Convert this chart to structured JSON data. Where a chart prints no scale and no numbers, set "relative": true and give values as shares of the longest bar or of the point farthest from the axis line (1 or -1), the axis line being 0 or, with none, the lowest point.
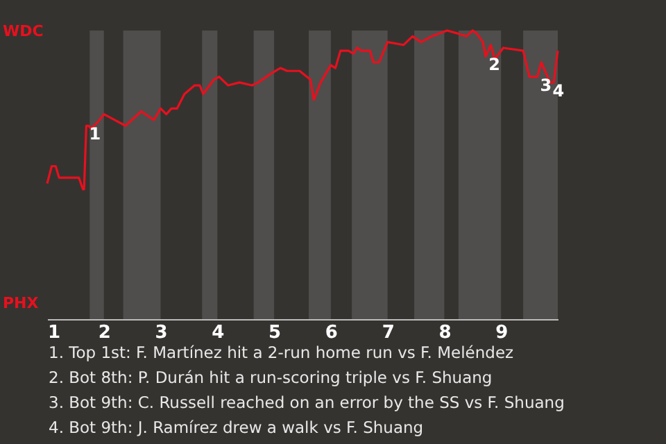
{
  "chart_data": {
    "type": "line",
    "relative": true,
    "x": [
      1,
      1.08,
      1.15,
      1.21,
      1.33,
      1.44,
      1.56,
      1.63,
      1.65,
      1.69,
      1.73,
      1.77,
      1.88,
      2,
      2.19,
      2.38,
      2.66,
      2.88,
      3,
      3.1,
      3.19,
      3.29,
      3.42,
      3.6,
      3.69,
      3.75,
      3.94,
      4.03,
      4.19,
      4.39,
      4.61,
      4.72,
      4.94,
      5.11,
      5.23,
      5.45,
      5.64,
      5.7,
      5.82,
      6,
      6.08,
      6.17,
      6.31,
      6.4,
      6.46,
      6.54,
      6.69,
      6.75,
      6.85,
      7,
      7.28,
      7.44,
      7.59,
      7.78,
      8.05,
      8.23,
      8.39,
      8.5,
      8.57,
      8.68,
      8.73,
      8.82,
      8.89,
      9.04,
      9.39,
      9.5,
      9.64,
      9.71,
      9.82,
      9.86,
      9.93,
      10
    ],
    "series": [
      {
        "color": "#e8101e",
        "values": [
          0.47,
          0.53,
          0.53,
          0.49,
          0.49,
          0.49,
          0.49,
          0.45,
          0.45,
          0.67,
          0.67,
          0.66,
          0.68,
          0.71,
          0.69,
          0.67,
          0.72,
          0.69,
          0.73,
          0.71,
          0.73,
          0.73,
          0.78,
          0.81,
          0.81,
          0.78,
          0.83,
          0.84,
          0.81,
          0.82,
          0.81,
          0.82,
          0.85,
          0.87,
          0.86,
          0.86,
          0.83,
          0.76,
          0.82,
          0.88,
          0.87,
          0.93,
          0.93,
          0.92,
          0.94,
          0.93,
          0.93,
          0.89,
          0.89,
          0.96,
          0.95,
          0.98,
          0.96,
          0.98,
          1,
          0.99,
          0.98,
          1,
          0.99,
          0.96,
          0.91,
          0.95,
          0.9,
          0.94,
          0.93,
          0.84,
          0.84,
          0.89,
          0.84,
          0.82,
          0.82,
          0.93
        ]
      }
    ],
    "xlim": [
      1,
      10
    ],
    "xticks": [
      1,
      2,
      3,
      4,
      5,
      6,
      7,
      8,
      9
    ],
    "bands": [
      {
        "axis": "x",
        "from": 1.75,
        "to": 2,
        "color": "#4f4e4c"
      },
      {
        "axis": "x",
        "from": 2.34,
        "to": 3,
        "color": "#4f4e4c"
      },
      {
        "axis": "x",
        "from": 3.73,
        "to": 4,
        "color": "#4f4e4c"
      },
      {
        "axis": "x",
        "from": 4.64,
        "to": 5,
        "color": "#4f4e4c"
      },
      {
        "axis": "x",
        "from": 5.61,
        "to": 6,
        "color": "#4f4e4c"
      },
      {
        "axis": "x",
        "from": 6.37,
        "to": 7,
        "color": "#4f4e4c"
      },
      {
        "axis": "x",
        "from": 7.47,
        "to": 8,
        "color": "#4f4e4c"
      },
      {
        "axis": "x",
        "from": 8.25,
        "to": 9,
        "color": "#4f4e4c"
      },
      {
        "axis": "x",
        "from": 9.39,
        "to": 10,
        "color": "#4f4e4c"
      }
    ],
    "annotations": [
      "WDC",
      "PHX",
      {
        "text": "1",
        "x": 1.69,
        "y": 0.67
      },
      {
        "text": "2",
        "x": 8.73,
        "y": 0.91
      },
      {
        "text": "3",
        "x": 9.64,
        "y": 0.84
      },
      {
        "text": "4",
        "x": 9.86,
        "y": 0.82
      },
      "1. Top 1st: F. Martínez hit a 2-run home run vs F. Meléndez",
      "2. Bot 8th: P. Durán hit a run-scoring triple vs F. Shuang",
      "3. Bot 9th: C. Russell reached on an error by the SS vs F. Shuang",
      "4. Bot 9th: J. Ramírez drew a walk vs F. Shuang"
    ]
  }
}
